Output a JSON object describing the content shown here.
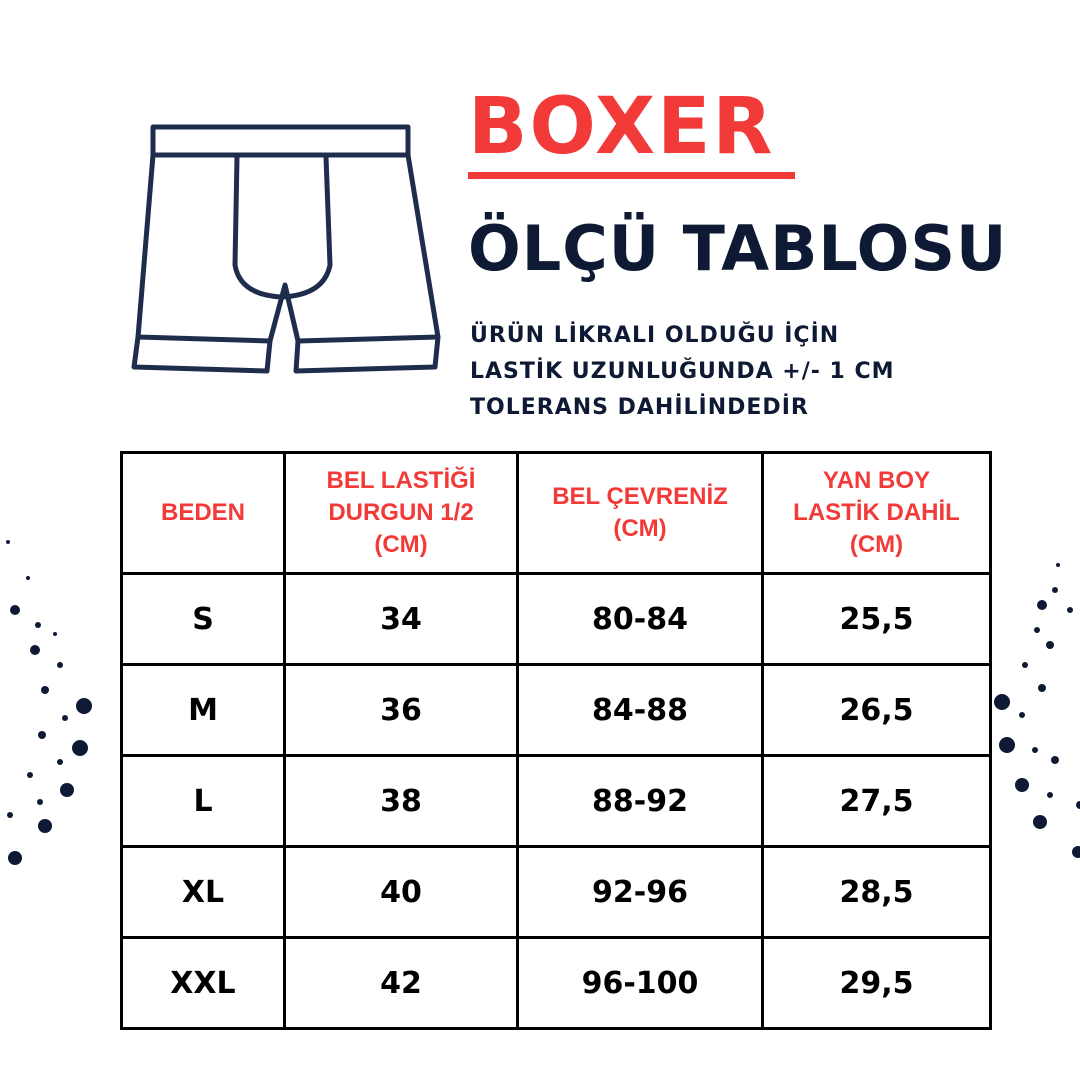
{
  "header": {
    "title": "BOXER",
    "subtitle": "ÖLÇÜ TABLOSU",
    "note_lines": [
      "ÜRÜN LİKRALI OLDUĞU İÇİN",
      "LASTİK UZUNLUĞUNDA +/- 1 CM",
      "TOLERANS DAHİLİNDEDİR"
    ]
  },
  "colors": {
    "accent": "#f23a38",
    "navy": "#0e1a33"
  },
  "illustration": {
    "icon": "boxer-shorts-icon"
  },
  "table": {
    "headers": [
      [
        "BEDEN"
      ],
      [
        "BEL LASTİĞİ",
        "DURGUN 1/2",
        "(CM)"
      ],
      [
        "BEL ÇEVRENİZ",
        "(CM)"
      ],
      [
        "YAN BOY",
        "LASTİK DAHİL",
        "(CM)"
      ]
    ],
    "rows": [
      [
        "S",
        "34",
        "80-84",
        "25,5"
      ],
      [
        "M",
        "36",
        "84-88",
        "26,5"
      ],
      [
        "L",
        "38",
        "88-92",
        "27,5"
      ],
      [
        "XL",
        "40",
        "92-96",
        "28,5"
      ],
      [
        "XXL",
        "42",
        "96-100",
        "29,5"
      ]
    ]
  }
}
